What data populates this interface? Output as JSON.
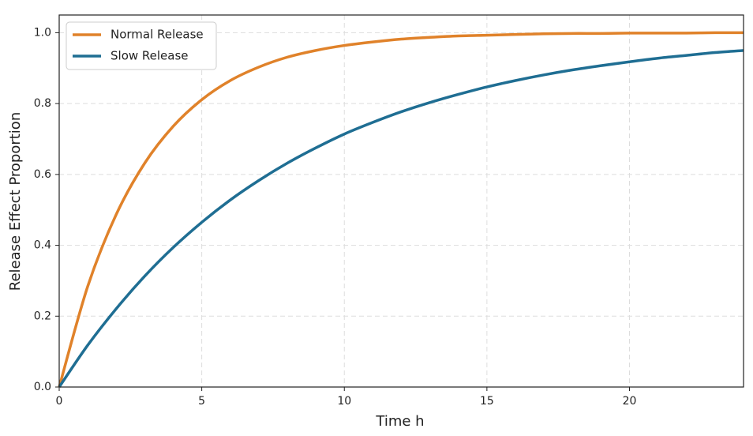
{
  "chart_data": {
    "type": "line",
    "xlabel": "Time h",
    "ylabel": "Release Effect Proportion",
    "x": [
      0,
      1,
      2,
      3,
      4,
      5,
      6,
      7,
      8,
      9,
      10,
      11,
      12,
      13,
      14,
      15,
      16,
      17,
      18,
      19,
      20,
      21,
      22,
      23,
      24
    ],
    "series": [
      {
        "name": "Normal Release",
        "color": "#e0822a",
        "values": [
          0,
          0.284,
          0.487,
          0.632,
          0.736,
          0.811,
          0.865,
          0.903,
          0.931,
          0.95,
          0.964,
          0.974,
          0.982,
          0.987,
          0.991,
          0.993,
          0.995,
          0.997,
          0.998,
          0.998,
          0.999,
          0.999,
          0.999,
          1.0,
          1.0
        ]
      },
      {
        "name": "Slow Release",
        "color": "#1f6e93",
        "values": [
          0,
          0.118,
          0.221,
          0.313,
          0.394,
          0.465,
          0.528,
          0.583,
          0.632,
          0.675,
          0.714,
          0.747,
          0.777,
          0.803,
          0.826,
          0.847,
          0.865,
          0.881,
          0.895,
          0.907,
          0.918,
          0.928,
          0.936,
          0.944,
          0.95
        ]
      }
    ],
    "xlim": [
      0,
      24
    ],
    "ylim": [
      0,
      1.05
    ],
    "xticks": [
      0,
      5,
      10,
      15,
      20
    ],
    "yticks": [
      {
        "value": 0,
        "label": "0.0"
      },
      0.2,
      0.4,
      0.6,
      0.8,
      {
        "value": 1,
        "label": "1.0"
      }
    ],
    "grid": true,
    "legend": "upper left"
  }
}
